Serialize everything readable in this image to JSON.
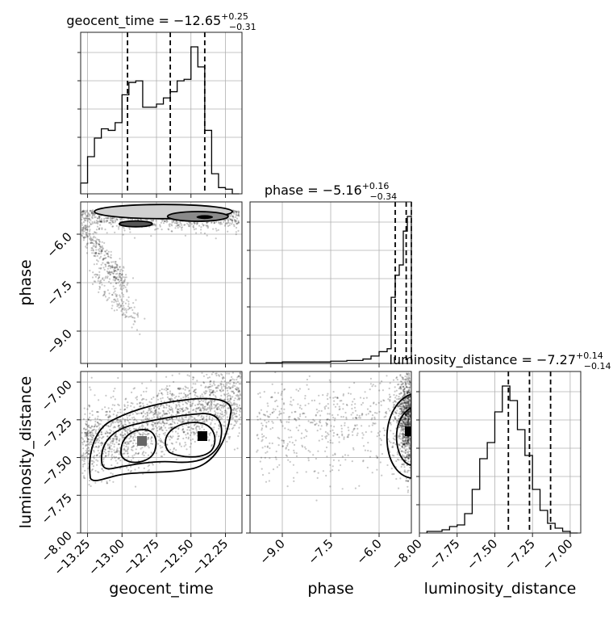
{
  "chart_data": {
    "type": "corner",
    "parameters": [
      "geocent_time",
      "phase",
      "luminosity_distance"
    ],
    "titles": [
      {
        "base": "geocent_time = −12.65",
        "sup": "+0.25",
        "sub": "−0.31"
      },
      {
        "base": "phase = −5.16",
        "sup": "+0.16",
        "sub": "−0.34"
      },
      {
        "base": "luminosity_distance = −7.27",
        "sup": "+0.14",
        "sub": "−0.14"
      }
    ],
    "axis_labels": {
      "x": [
        "geocent_time",
        "phase",
        "luminosity_distance"
      ],
      "y": [
        "phase",
        "luminosity_distance"
      ]
    },
    "ranges": {
      "geocent_time": [
        -13.3,
        -12.13
      ],
      "phase": [
        -10.0,
        -5.0
      ],
      "luminosity_distance": [
        -8.0,
        -6.93
      ]
    },
    "ticks": {
      "geocent_time": {
        "values": [
          -13.25,
          -13.0,
          -12.75,
          -12.5,
          -12.25
        ],
        "labels": [
          "−13.25",
          "−13.00",
          "−12.75",
          "−12.50",
          "−12.25"
        ]
      },
      "phase": {
        "values": [
          -9.0,
          -7.5,
          -6.0
        ],
        "labels": [
          "−9.0",
          "−7.5",
          "−6.0"
        ]
      },
      "luminosity_distance": {
        "values": [
          -8.0,
          -7.75,
          -7.5,
          -7.25,
          -7.0
        ],
        "labels": [
          "−8.00",
          "−7.75",
          "−7.50",
          "−7.25",
          "−7.00"
        ]
      }
    },
    "quantiles": {
      "geocent_time": [
        -12.96,
        -12.65,
        -12.4
      ],
      "phase": [
        -5.5,
        -5.16,
        -5.0
      ],
      "luminosity_distance": [
        -7.41,
        -7.27,
        -7.13
      ]
    },
    "histograms": {
      "geocent_time": {
        "bin_edges": [
          -13.3,
          -13.25,
          -13.2,
          -13.15,
          -13.1,
          -13.05,
          -13.0,
          -12.95,
          -12.9,
          -12.85,
          -12.8,
          -12.75,
          -12.7,
          -12.65,
          -12.6,
          -12.55,
          -12.5,
          -12.45,
          -12.4,
          -12.35,
          -12.3,
          -12.25,
          -12.2,
          -12.15
        ],
        "counts": [
          0.07,
          0.24,
          0.36,
          0.42,
          0.41,
          0.46,
          0.64,
          0.72,
          0.73,
          0.56,
          0.56,
          0.58,
          0.62,
          0.66,
          0.73,
          0.74,
          0.95,
          0.82,
          0.41,
          0.13,
          0.04,
          0.03,
          0.0
        ]
      },
      "phase": {
        "bin_edges": [
          -10.0,
          -9.5,
          -9.0,
          -8.5,
          -8.0,
          -7.5,
          -7.0,
          -6.5,
          -6.25,
          -6.0,
          -5.75,
          -5.625,
          -5.5,
          -5.375,
          -5.25,
          -5.125,
          -5.0
        ],
        "counts": [
          0.0,
          0.005,
          0.01,
          0.01,
          0.01,
          0.015,
          0.02,
          0.03,
          0.05,
          0.08,
          0.1,
          0.45,
          0.6,
          0.67,
          0.9,
          1.0
        ]
      },
      "luminosity_distance": {
        "bin_edges": [
          -7.95,
          -7.9,
          -7.85,
          -7.8,
          -7.75,
          -7.7,
          -7.65,
          -7.6,
          -7.55,
          -7.5,
          -7.45,
          -7.4,
          -7.35,
          -7.3,
          -7.25,
          -7.2,
          -7.15,
          -7.1,
          -7.05,
          -7.0,
          -6.95
        ],
        "counts": [
          0.01,
          0.01,
          0.02,
          0.04,
          0.05,
          0.12,
          0.27,
          0.46,
          0.56,
          0.75,
          0.91,
          0.82,
          0.64,
          0.48,
          0.27,
          0.14,
          0.06,
          0.03,
          0.01,
          0.0
        ]
      }
    }
  }
}
